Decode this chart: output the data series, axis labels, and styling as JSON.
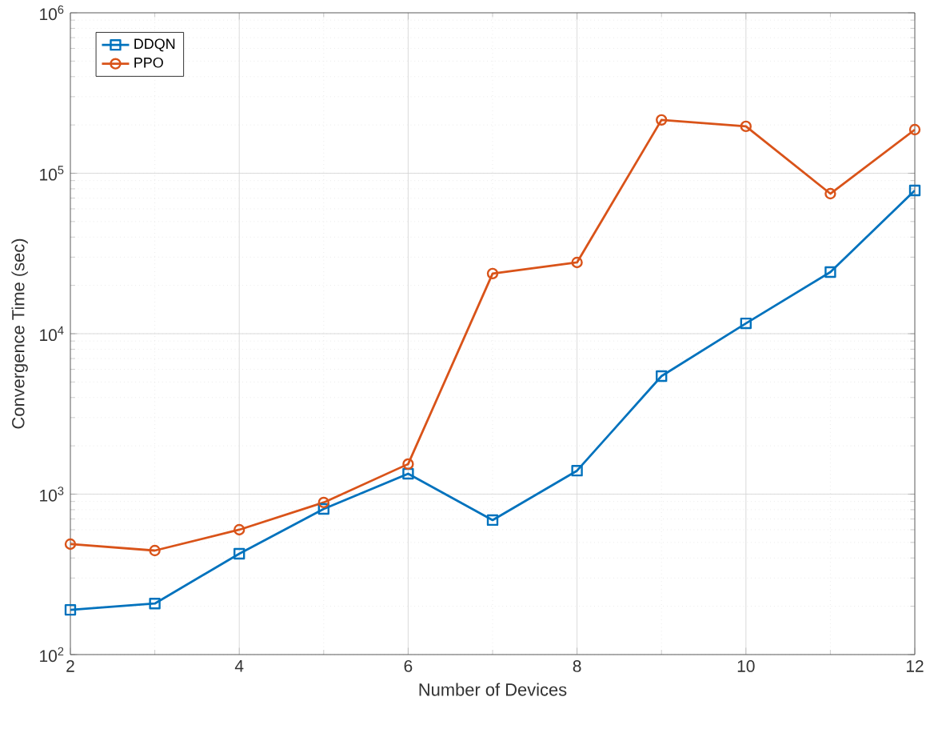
{
  "chart_data": {
    "type": "line",
    "xlabel": "Number of Devices",
    "ylabel": "Convergence Time (sec)",
    "x": [
      2,
      3,
      4,
      5,
      6,
      7,
      8,
      9,
      10,
      11,
      12
    ],
    "series": [
      {
        "name": "DDQN",
        "color": "#0072bd",
        "marker": "square",
        "values": [
          190,
          208,
          425,
          809,
          1340,
          689,
          1400,
          5440,
          11600,
          24200,
          78100
        ]
      },
      {
        "name": "PPO",
        "color": "#d95319",
        "marker": "circle",
        "values": [
          488,
          445,
          600,
          887,
          1540,
          23700,
          27800,
          215000,
          196000,
          74600,
          187000
        ]
      }
    ],
    "log": "y",
    "xlim": [
      2,
      12
    ],
    "ylim": [
      100,
      1000000
    ],
    "xticks": [
      2,
      4,
      6,
      8,
      10,
      12
    ],
    "yticks": [
      {
        "value": 100,
        "label": "10$^{2}$"
      },
      {
        "value": 1000,
        "label": "10$^{3}$"
      },
      {
        "value": 10000,
        "label": "10$^{4}$"
      },
      {
        "value": 100000,
        "label": "10$^{5}$"
      },
      {
        "value": 1000000,
        "label": "10$^{6}$"
      }
    ],
    "grid": true,
    "legend": "top left",
    "line_style": "solid"
  }
}
